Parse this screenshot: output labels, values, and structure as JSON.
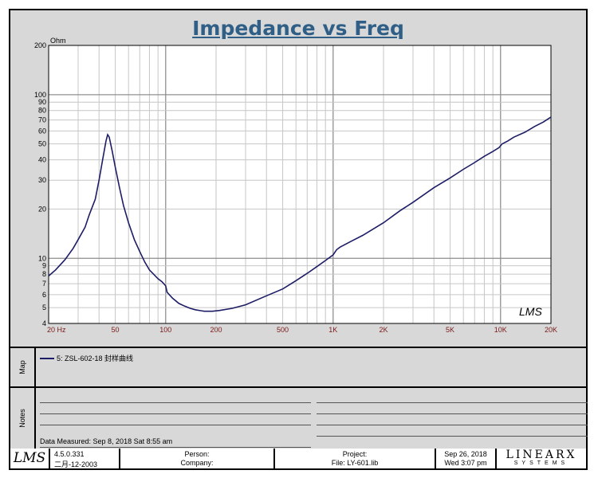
{
  "chart_data": {
    "type": "line",
    "title": "Impedance vs Freq",
    "ylabel": "Ohm",
    "xscale": "log",
    "yscale": "log",
    "xlim": [
      20,
      20000
    ],
    "ylim": [
      4,
      200
    ],
    "x_ticks": [
      {
        "value": 20,
        "label": "20  Hz"
      },
      {
        "value": 50,
        "label": "50"
      },
      {
        "value": 100,
        "label": "100"
      },
      {
        "value": 200,
        "label": "200"
      },
      {
        "value": 500,
        "label": "500"
      },
      {
        "value": 1000,
        "label": "1K"
      },
      {
        "value": 2000,
        "label": "2K"
      },
      {
        "value": 5000,
        "label": "5K"
      },
      {
        "value": 10000,
        "label": "10K"
      },
      {
        "value": 20000,
        "label": "20K"
      }
    ],
    "y_ticks": [
      4,
      5,
      6,
      7,
      8,
      9,
      10,
      20,
      30,
      40,
      50,
      60,
      70,
      80,
      90,
      100,
      200
    ],
    "grid": true,
    "series": [
      {
        "name": "5: ZSL-602-18  封样曲线",
        "color": "#1d1d66",
        "points": [
          [
            20,
            7.8
          ],
          [
            22,
            8.5
          ],
          [
            25,
            9.8
          ],
          [
            28,
            11.5
          ],
          [
            30,
            13
          ],
          [
            33,
            15.5
          ],
          [
            35,
            18.5
          ],
          [
            38,
            23
          ],
          [
            40,
            30
          ],
          [
            42,
            40
          ],
          [
            44,
            52
          ],
          [
            45,
            57
          ],
          [
            46,
            55
          ],
          [
            48,
            45
          ],
          [
            50,
            36
          ],
          [
            53,
            27
          ],
          [
            56,
            21
          ],
          [
            60,
            16.5
          ],
          [
            65,
            13
          ],
          [
            70,
            11
          ],
          [
            75,
            9.5
          ],
          [
            80,
            8.5
          ],
          [
            90,
            7.5
          ],
          [
            95,
            7.2
          ],
          [
            100,
            6.8
          ],
          [
            102,
            6.2
          ],
          [
            110,
            5.7
          ],
          [
            120,
            5.3
          ],
          [
            130,
            5.1
          ],
          [
            140,
            4.95
          ],
          [
            150,
            4.85
          ],
          [
            170,
            4.75
          ],
          [
            190,
            4.75
          ],
          [
            210,
            4.8
          ],
          [
            250,
            4.95
          ],
          [
            300,
            5.2
          ],
          [
            400,
            5.9
          ],
          [
            500,
            6.5
          ],
          [
            600,
            7.3
          ],
          [
            700,
            8.1
          ],
          [
            800,
            8.9
          ],
          [
            900,
            9.7
          ],
          [
            1000,
            10.5
          ],
          [
            1050,
            11.3
          ],
          [
            1100,
            11.7
          ],
          [
            1300,
            12.8
          ],
          [
            1500,
            13.8
          ],
          [
            2000,
            16.5
          ],
          [
            2500,
            19.5
          ],
          [
            3000,
            22
          ],
          [
            4000,
            27
          ],
          [
            5000,
            31
          ],
          [
            6000,
            35
          ],
          [
            7000,
            38.5
          ],
          [
            8000,
            42
          ],
          [
            9000,
            45
          ],
          [
            9800,
            47.5
          ],
          [
            10200,
            50
          ],
          [
            11000,
            52
          ],
          [
            12000,
            55
          ],
          [
            14000,
            59
          ],
          [
            16000,
            64
          ],
          [
            18000,
            68
          ],
          [
            20000,
            73
          ]
        ]
      }
    ],
    "watermark": "LMS"
  },
  "map": {
    "label": "Map",
    "legend": "5: ZSL-602-18  封样曲线"
  },
  "notes": {
    "label": "Notes",
    "data_measured": "Data Measured: Sep  8, 2018  Sat  8:55 am"
  },
  "footer": {
    "logo": "LMS",
    "version": "4.5.0.331",
    "build_date": "二月-12-2003",
    "person": "Person:",
    "company": "Company:",
    "project": "Project:",
    "file": "File: LY-601.lib",
    "date": "Sep 26, 2018",
    "time": "Wed  3:07 pm",
    "brand": "LINEARX",
    "brand_sub": "SYSTEMS"
  }
}
